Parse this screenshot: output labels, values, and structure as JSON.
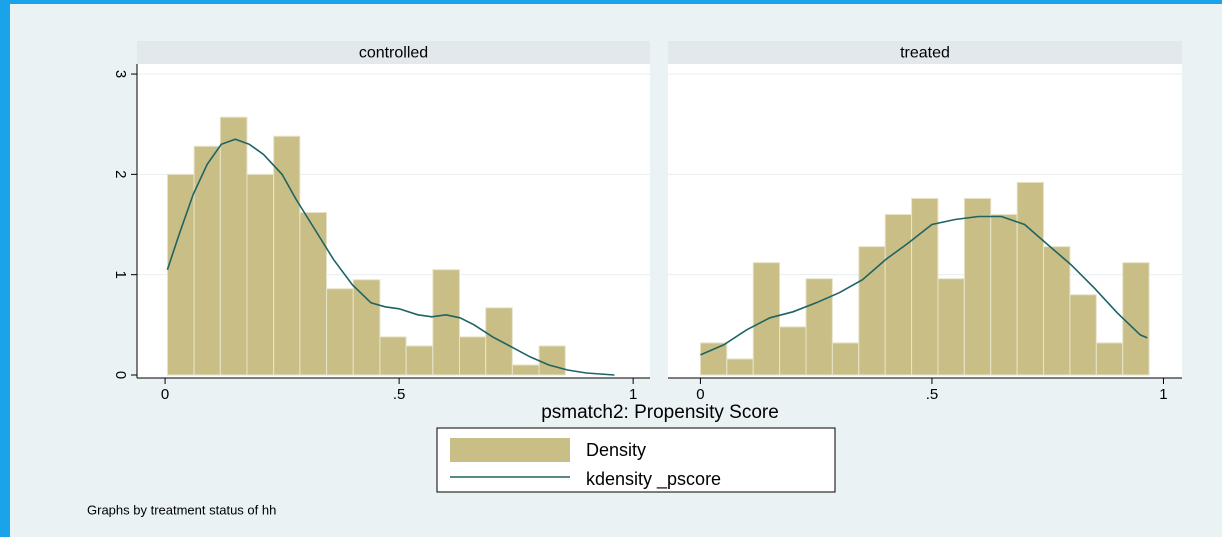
{
  "figure": {
    "xlabel": "psmatch2: Propensity Score",
    "note": "Graphs by treatment status of hh",
    "legend": [
      "Density",
      "kdensity _pscore"
    ],
    "legend_position": "bottom"
  },
  "chart_data": [
    {
      "type": "histogram",
      "title": "controlled",
      "bins": [
        0.005,
        0.062,
        0.118,
        0.175,
        0.232,
        0.288,
        0.345,
        0.402,
        0.459,
        0.515,
        0.572,
        0.629,
        0.685,
        0.742,
        0.799,
        0.855
      ],
      "values": [
        2.0,
        2.28,
        2.57,
        2.0,
        2.38,
        1.62,
        0.86,
        0.95,
        0.38,
        0.29,
        1.05,
        0.38,
        0.67,
        0.1,
        0.29
      ],
      "color": "#c9bf86",
      "kdensity": {
        "color": "#1f6363",
        "x": [
          0.005,
          0.03,
          0.06,
          0.09,
          0.12,
          0.15,
          0.18,
          0.21,
          0.25,
          0.28,
          0.32,
          0.36,
          0.4,
          0.44,
          0.47,
          0.5,
          0.54,
          0.57,
          0.6,
          0.63,
          0.66,
          0.7,
          0.74,
          0.78,
          0.82,
          0.86,
          0.9,
          0.96
        ],
        "values": [
          1.05,
          1.4,
          1.8,
          2.1,
          2.3,
          2.35,
          2.3,
          2.2,
          2.0,
          1.75,
          1.45,
          1.15,
          0.9,
          0.72,
          0.68,
          0.66,
          0.6,
          0.58,
          0.6,
          0.57,
          0.5,
          0.38,
          0.28,
          0.18,
          0.1,
          0.05,
          0.02,
          0.0
        ]
      },
      "xlim": [
        -0.06,
        1.036
      ],
      "ylim": [
        -0.03,
        3.1
      ],
      "xticks": [
        0,
        {
          "value": 0.5,
          "label": ".5"
        },
        1
      ],
      "yticks": [
        0,
        1,
        2,
        3
      ],
      "ytick_labels": true,
      "grid": true
    },
    {
      "type": "histogram",
      "title": "treated",
      "bins": [
        0.0,
        0.057,
        0.114,
        0.171,
        0.228,
        0.285,
        0.342,
        0.399,
        0.456,
        0.513,
        0.57,
        0.627,
        0.684,
        0.741,
        0.798,
        0.855,
        0.912,
        0.969
      ],
      "values": [
        0.32,
        0.16,
        1.12,
        0.48,
        0.96,
        0.32,
        1.28,
        1.6,
        1.76,
        0.96,
        1.76,
        1.6,
        1.92,
        1.28,
        0.8,
        0.32,
        1.12
      ],
      "color": "#c9bf86",
      "kdensity": {
        "color": "#1f6363",
        "x": [
          0.0,
          0.05,
          0.1,
          0.15,
          0.2,
          0.25,
          0.3,
          0.35,
          0.4,
          0.45,
          0.5,
          0.55,
          0.6,
          0.65,
          0.7,
          0.75,
          0.8,
          0.85,
          0.9,
          0.95,
          0.965
        ],
        "values": [
          0.2,
          0.3,
          0.45,
          0.57,
          0.63,
          0.72,
          0.82,
          0.95,
          1.15,
          1.32,
          1.5,
          1.55,
          1.58,
          1.58,
          1.5,
          1.3,
          1.1,
          0.87,
          0.62,
          0.4,
          0.37
        ]
      },
      "xlim": [
        -0.07,
        1.04
      ],
      "ylim": [
        -0.03,
        3.1
      ],
      "xticks": [
        0,
        {
          "value": 0.5,
          "label": ".5"
        },
        1
      ],
      "yticks": [
        0,
        1,
        2,
        3
      ],
      "ytick_labels": false,
      "grid": true
    }
  ]
}
